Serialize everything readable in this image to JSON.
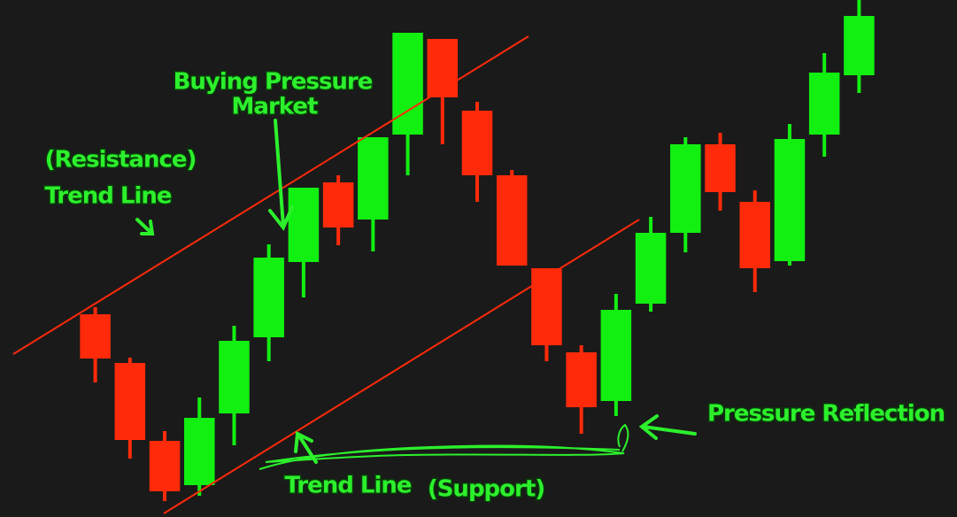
{
  "chart_data": {
    "type": "candlestick",
    "categories": [
      null,
      null,
      null,
      null,
      null,
      null,
      null,
      null,
      null,
      null,
      null,
      null,
      null,
      null,
      null,
      null,
      null,
      null,
      null,
      null,
      null,
      null,
      null
    ],
    "open": [
      229,
      174,
      86,
      36,
      117,
      203,
      288,
      378,
      336,
      432,
      540,
      459,
      386,
      281,
      186,
      131,
      241,
      321,
      421,
      356,
      289,
      432,
      499
    ],
    "high": [
      237,
      180,
      97,
      135,
      216,
      308,
      372,
      386,
      429,
      547,
      540,
      469,
      392,
      281,
      194,
      252,
      339,
      429,
      434,
      369,
      444,
      524,
      584
    ],
    "low": [
      152,
      66,
      18,
      24,
      81,
      176,
      248,
      307,
      300,
      386,
      421,
      356,
      284,
      176,
      94,
      114,
      232,
      299,
      346,
      254,
      284,
      407,
      479
    ],
    "close": [
      179,
      87,
      29,
      112,
      199,
      293,
      372,
      327,
      429,
      547,
      474,
      386,
      284,
      194,
      124,
      234,
      321,
      421,
      367,
      281,
      427,
      502,
      566
    ],
    "up_color": "#12f012",
    "down_color": "#ff2a0a",
    "ylim": [
      0,
      584
    ],
    "annotations": [
      "Buying Pressure",
      "Market",
      "(Resistance)",
      "Trend Line",
      "Pressure Reflection",
      "Trend Line",
      "(Support)"
    ]
  }
}
